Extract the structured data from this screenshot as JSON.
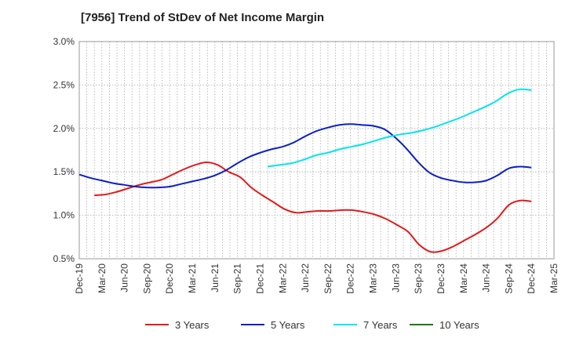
{
  "title": "[7956]  Trend of StDev of Net Income Margin",
  "chart_data": {
    "type": "line",
    "title": "[7956]  Trend of StDev of Net Income Margin",
    "xlabel": "",
    "ylabel": "",
    "ylim": [
      0.5,
      3.0
    ],
    "y_ticks": [
      "0.5%",
      "1.0%",
      "1.5%",
      "2.0%",
      "2.5%",
      "3.0%"
    ],
    "y_tick_values": [
      0.5,
      1.0,
      1.5,
      2.0,
      2.5,
      3.0
    ],
    "x_tick_labels": [
      "Dec-19",
      "Mar-20",
      "Jun-20",
      "Sep-20",
      "Dec-20",
      "Mar-21",
      "Jun-21",
      "Sep-21",
      "Dec-21",
      "Mar-22",
      "Jun-22",
      "Sep-22",
      "Dec-22",
      "Mar-23",
      "Jun-23",
      "Sep-23",
      "Dec-23",
      "Mar-24",
      "Jun-24",
      "Sep-24",
      "Dec-24",
      "Mar-25"
    ],
    "grid": true,
    "legend_position": "bottom",
    "series": [
      {
        "name": "3 Years",
        "color": "#e31a1c",
        "values": [
          1.23,
          1.24,
          1.27,
          1.31,
          1.35,
          1.38,
          1.41,
          1.47,
          1.53,
          1.58,
          1.61,
          1.58,
          1.5,
          1.44,
          1.32,
          1.23,
          1.15,
          1.07,
          1.03,
          1.04,
          1.05,
          1.05,
          1.06,
          1.06,
          1.04,
          1.01,
          0.96,
          0.89,
          0.81,
          0.66,
          0.58,
          0.59,
          0.64,
          0.71,
          0.78,
          0.86,
          0.97,
          1.12,
          1.17,
          1.16
        ]
      },
      {
        "name": "5 Years",
        "color": "#0b1fc9",
        "values": [
          1.47,
          1.43,
          1.4,
          1.37,
          1.35,
          1.33,
          1.32,
          1.32,
          1.33,
          1.36,
          1.39,
          1.42,
          1.46,
          1.52,
          1.6,
          1.67,
          1.72,
          1.76,
          1.79,
          1.84,
          1.91,
          1.97,
          2.01,
          2.04,
          2.05,
          2.04,
          2.03,
          1.99,
          1.89,
          1.76,
          1.61,
          1.49,
          1.43,
          1.4,
          1.38,
          1.38,
          1.4,
          1.46,
          1.54,
          1.56,
          1.55
        ]
      },
      {
        "name": "7 Years",
        "color": "#00e5ee",
        "values": [
          1.56,
          1.58,
          1.6,
          1.64,
          1.69,
          1.72,
          1.76,
          1.79,
          1.82,
          1.86,
          1.9,
          1.93,
          1.95,
          1.98,
          2.02,
          2.07,
          2.12,
          2.18,
          2.24,
          2.31,
          2.4,
          2.45,
          2.44
        ]
      },
      {
        "name": "10 Years",
        "color": "#1a7a1a",
        "values": []
      }
    ]
  }
}
